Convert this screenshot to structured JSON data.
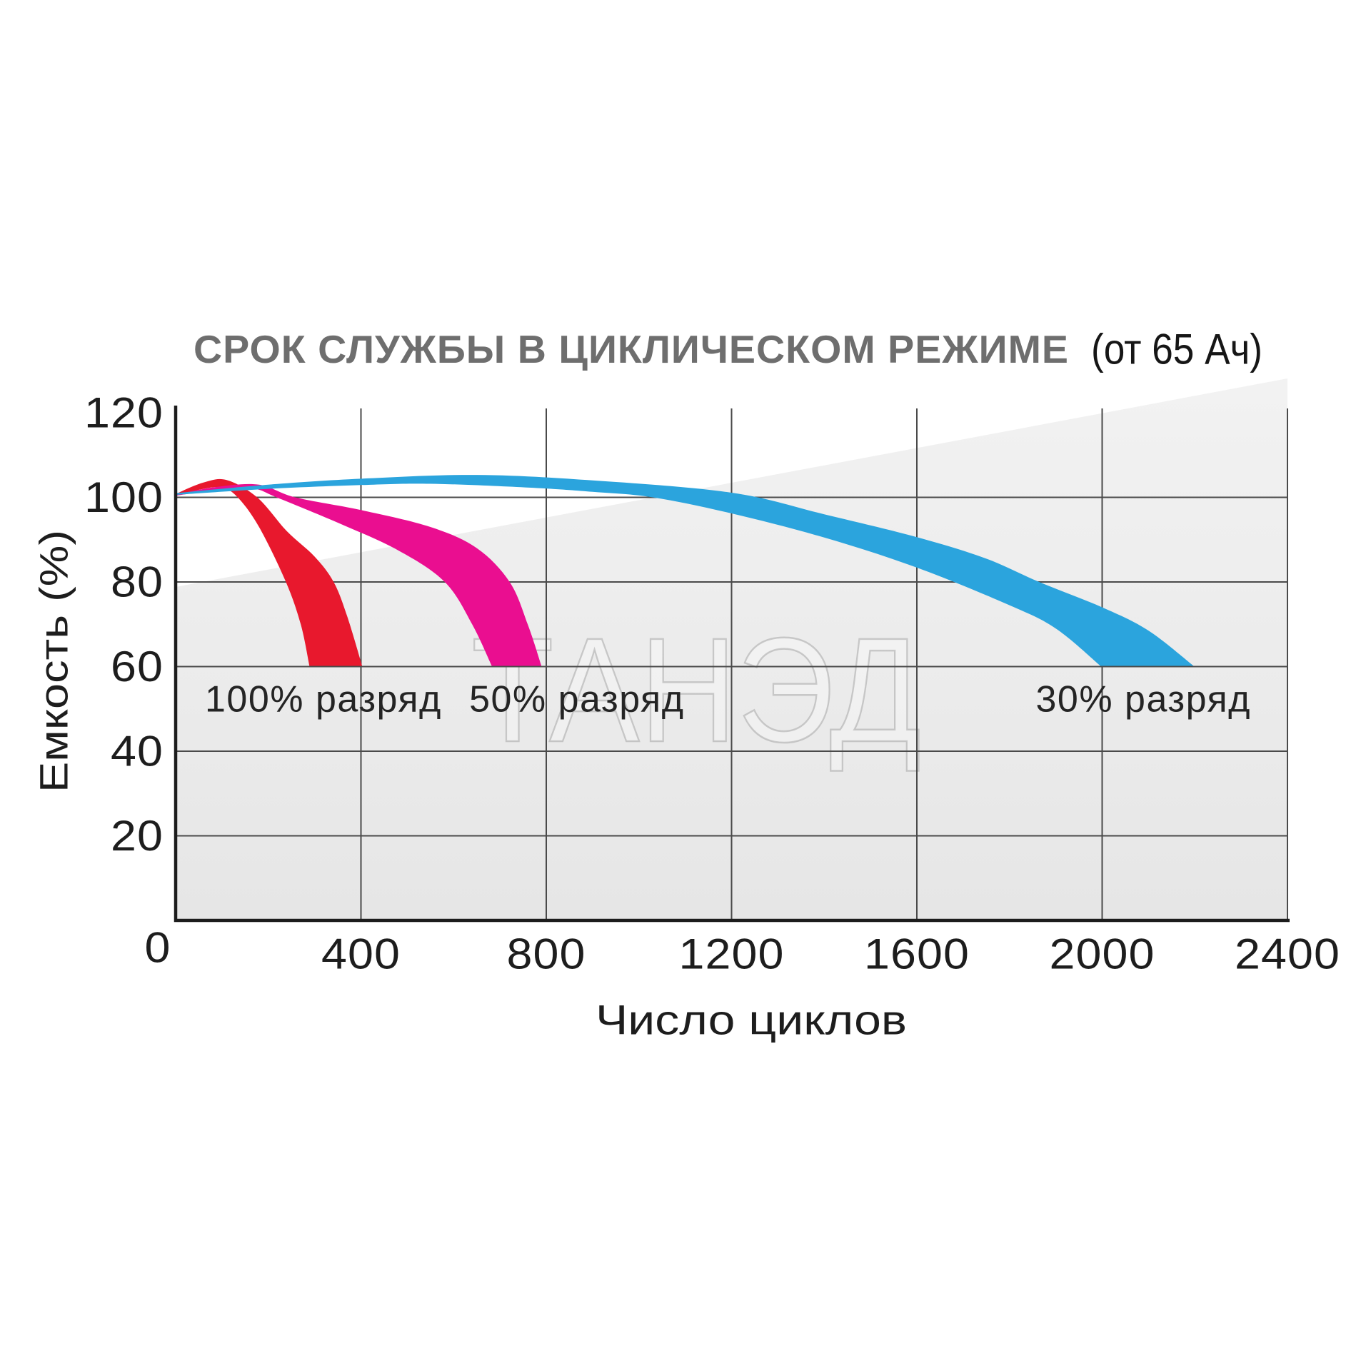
{
  "title": {
    "main": "СРОК СЛУЖБЫ В ЦИКЛИЧЕСКОМ РЕЖИМЕ",
    "suffix": "(от 65 Ач)"
  },
  "watermark": "ТАНЭД",
  "colors": {
    "red": "#e8182d",
    "magenta": "#ea0e90",
    "blue": "#2ba4dd",
    "grid": "#4a4a4a",
    "axis": "#1c1c1c",
    "title_gray": "#6e6e6e",
    "text_dark": "#1d1d1d",
    "shade_top": "#f2f2f2",
    "shade_bottom": "#e6e6e6"
  },
  "chart_data": {
    "type": "area",
    "title": "СРОК СЛУЖБЫ В ЦИКЛИЧЕСКОМ РЕЖИМЕ (от 65 Ач)",
    "xlabel": "Число циклов",
    "ylabel": "Емкость (%)",
    "xlim": [
      0,
      2400
    ],
    "ylim": [
      0,
      120
    ],
    "xticks": [
      0,
      400,
      800,
      1200,
      1600,
      2000,
      2400
    ],
    "yticks": [
      0,
      20,
      40,
      60,
      80,
      100,
      120
    ],
    "grid": true,
    "legend_position": "inside-below-curves",
    "band_cutoff_percent": 60,
    "series": [
      {
        "name": "100% разряд",
        "color": "#e8182d",
        "label_at": {
          "cycles": 319,
          "percent": 52.2
        },
        "upper": [
          [
            0,
            100.8
          ],
          [
            60,
            103.5
          ],
          [
            110,
            104.1
          ],
          [
            176,
            100
          ],
          [
            240,
            92
          ],
          [
            300,
            86
          ],
          [
            341,
            80
          ],
          [
            370,
            72
          ],
          [
            403,
            60
          ]
        ],
        "lower": [
          [
            0,
            100.4
          ],
          [
            60,
            102.0
          ],
          [
            100,
            102.3
          ],
          [
            134,
            100
          ],
          [
            180,
            93
          ],
          [
            238,
            80
          ],
          [
            270,
            70
          ],
          [
            289,
            60
          ]
        ]
      },
      {
        "name": "50% разряд",
        "color": "#ea0e90",
        "label_at": {
          "cycles": 866,
          "percent": 52.2
        },
        "upper": [
          [
            0,
            100.7
          ],
          [
            90,
            102.5
          ],
          [
            180,
            103
          ],
          [
            258,
            100
          ],
          [
            400,
            97
          ],
          [
            550,
            93
          ],
          [
            650,
            88
          ],
          [
            721,
            80
          ],
          [
            760,
            70
          ],
          [
            790,
            60
          ]
        ],
        "lower": [
          [
            0,
            100.4
          ],
          [
            100,
            101.8
          ],
          [
            170,
            102
          ],
          [
            218,
            100
          ],
          [
            350,
            94
          ],
          [
            480,
            87.5
          ],
          [
            581,
            80
          ],
          [
            640,
            70
          ],
          [
            683,
            60
          ]
        ]
      },
      {
        "name": "30% разряд",
        "color": "#2ba4dd",
        "label_at": {
          "cycles": 2089,
          "percent": 52.2
        },
        "upper": [
          [
            0,
            101
          ],
          [
            200,
            103
          ],
          [
            400,
            104.4
          ],
          [
            650,
            105.3
          ],
          [
            900,
            104
          ],
          [
            1200,
            101.1
          ],
          [
            1400,
            96
          ],
          [
            1600,
            90.6
          ],
          [
            1750,
            85.5
          ],
          [
            1864,
            80
          ],
          [
            2000,
            74
          ],
          [
            2100,
            68.5
          ],
          [
            2199,
            60
          ]
        ],
        "lower": [
          [
            0,
            100.6
          ],
          [
            200,
            102
          ],
          [
            400,
            102.9
          ],
          [
            550,
            103.2
          ],
          [
            763,
            102.3
          ],
          [
            900,
            101.3
          ],
          [
            1030,
            100
          ],
          [
            1200,
            96.2
          ],
          [
            1400,
            90.5
          ],
          [
            1600,
            83.4
          ],
          [
            1800,
            74.5
          ],
          [
            1900,
            69
          ],
          [
            1998,
            60
          ]
        ]
      }
    ]
  }
}
